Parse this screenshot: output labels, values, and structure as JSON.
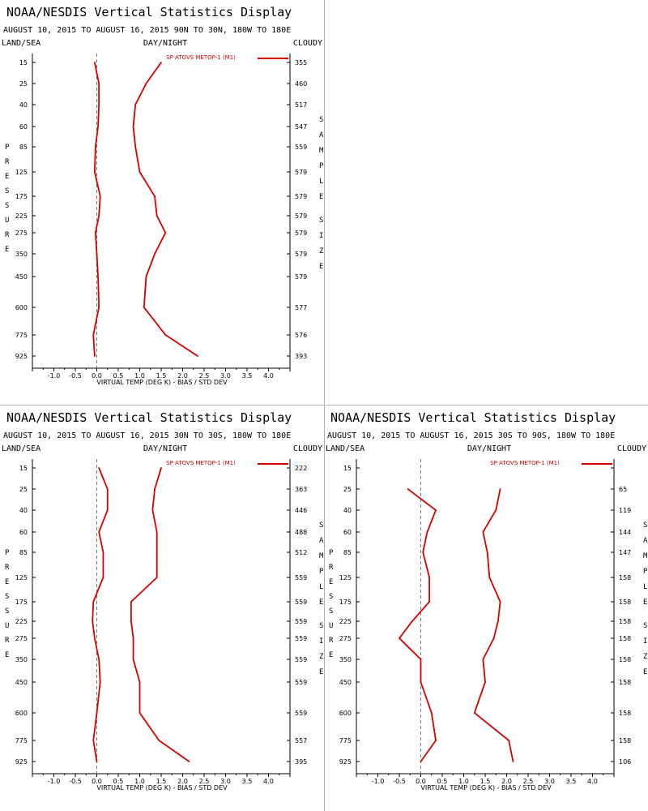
{
  "title": "NOAA/NESDIS Vertical Statistics Display",
  "colors": {
    "series": "#d40000",
    "axis": "#000000",
    "zero": "#777777"
  },
  "chart_data": [
    {
      "type": "line",
      "title": "NOAA/NESDIS Vertical Statistics Display",
      "subtitle": "AUGUST 10, 2015 TO AUGUST 16, 2015  90N TO 30N, 180W TO 180E",
      "labels": {
        "left": "LAND/SEA",
        "center": "DAY/NIGHT",
        "right": "CLOUDY"
      },
      "legend": "SP ATOVS METOP-1 (M1)",
      "xlabel": "VIRTUAL TEMP (DEG K) - BIAS / STD DEV",
      "ylabel": "PRESSURE",
      "y2label": "SAMPLE SIZE",
      "xlim": [
        -1.5,
        4.5
      ],
      "xticks": [
        "-1.0",
        "-0.5",
        "0.0",
        "0.5",
        "1.0",
        "1.5",
        "2.0",
        "2.5",
        "3.0",
        "3.5",
        "4.0"
      ],
      "pressure": [
        "15",
        "25",
        "40",
        "60",
        "85",
        "125",
        "175",
        "225",
        "275",
        "350",
        "450",
        "600",
        "775",
        "925"
      ],
      "sample_size": [
        "355",
        "460",
        "517",
        "547",
        "559",
        "579",
        "579",
        "579",
        "579",
        "579",
        "579",
        "577",
        "576",
        "393"
      ],
      "bias": [
        -0.05,
        0.05,
        0.05,
        0.03,
        -0.03,
        -0.05,
        0.08,
        0.05,
        -0.03,
        0.0,
        0.03,
        0.05,
        -0.08,
        -0.05
      ],
      "std_dev": [
        1.5,
        1.15,
        0.9,
        0.85,
        0.9,
        1.0,
        1.35,
        1.4,
        1.6,
        1.35,
        1.15,
        1.1,
        1.6,
        2.35
      ]
    },
    {
      "type": "line",
      "title": "NOAA/NESDIS Vertical Statistics Display",
      "subtitle": "AUGUST 10, 2015 TO AUGUST 16, 2015  30N TO 30S, 180W TO 180E",
      "labels": {
        "left": "LAND/SEA",
        "center": "DAY/NIGHT",
        "right": "CLOUDY"
      },
      "legend": "SP ATOVS METOP-1 (M1)",
      "xlabel": "VIRTUAL TEMP (DEG K) - BIAS / STD DEV",
      "ylabel": "PRESSURE",
      "y2label": "SAMPLE SIZE",
      "xlim": [
        -1.5,
        4.5
      ],
      "xticks": [
        "-1.0",
        "-0.5",
        "0.0",
        "0.5",
        "1.0",
        "1.5",
        "2.0",
        "2.5",
        "3.0",
        "3.5",
        "4.0"
      ],
      "pressure": [
        "15",
        "25",
        "40",
        "60",
        "85",
        "125",
        "175",
        "225",
        "275",
        "350",
        "450",
        "600",
        "775",
        "925"
      ],
      "sample_size": [
        "222",
        "363",
        "446",
        "488",
        "512",
        "559",
        "559",
        "559",
        "559",
        "559",
        "559",
        "559",
        "557",
        "395"
      ],
      "bias": [
        0.05,
        0.25,
        0.25,
        0.05,
        0.15,
        0.15,
        -0.08,
        -0.1,
        -0.05,
        0.05,
        0.08,
        0.0,
        -0.08,
        0.0
      ],
      "std_dev": [
        1.5,
        1.35,
        1.3,
        1.4,
        1.4,
        1.4,
        0.8,
        0.8,
        0.85,
        0.85,
        1.0,
        1.0,
        1.45,
        2.15
      ]
    },
    {
      "type": "line",
      "title": "NOAA/NESDIS Vertical Statistics Display",
      "subtitle": "AUGUST 10, 2015 TO AUGUST 16, 2015  30S TO 90S, 180W TO 180E",
      "labels": {
        "left": "LAND/SEA",
        "center": "DAY/NIGHT",
        "right": "CLOUDY"
      },
      "legend": "SP ATOVS METOP-1 (M1)",
      "xlabel": "VIRTUAL TEMP (DEG K) - BIAS / STD DEV",
      "ylabel": "PRESSURE",
      "y2label": "SAMPLE SIZE",
      "xlim": [
        -1.5,
        4.5
      ],
      "xticks": [
        "-1.0",
        "-0.5",
        "0.0",
        "0.5",
        "1.0",
        "1.5",
        "2.0",
        "2.5",
        "3.0",
        "3.5",
        "4.0"
      ],
      "pressure": [
        "15",
        "25",
        "40",
        "60",
        "85",
        "125",
        "175",
        "225",
        "275",
        "350",
        "450",
        "600",
        "775",
        "925"
      ],
      "sample_size": [
        "",
        "65",
        "119",
        "144",
        "147",
        "158",
        "158",
        "158",
        "158",
        "158",
        "158",
        "158",
        "158",
        "106"
      ],
      "bias": [
        null,
        -0.3,
        0.35,
        0.15,
        0.05,
        0.2,
        0.2,
        -0.2,
        -0.5,
        0.0,
        0.0,
        0.25,
        0.35,
        0.0
      ],
      "std_dev": [
        null,
        1.85,
        1.75,
        1.45,
        1.55,
        1.6,
        1.85,
        1.8,
        1.7,
        1.45,
        1.5,
        1.25,
        2.05,
        2.15
      ]
    }
  ]
}
